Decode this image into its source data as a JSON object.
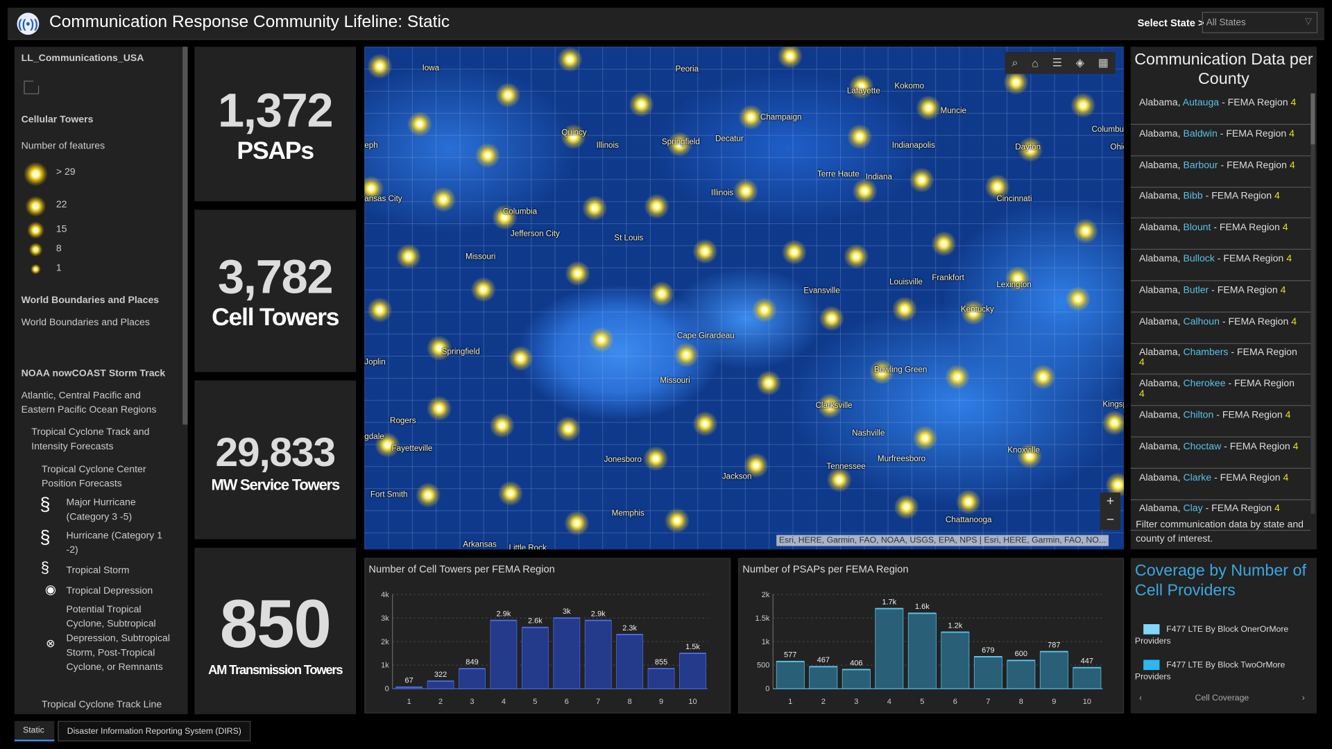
{
  "header": {
    "title": "Communication Response Community Lifeline: Static",
    "select_label": "Select State >",
    "select_value": "All States"
  },
  "legend": {
    "layer": "LL_Communications_USA",
    "cell_title": "Cellular Towers",
    "cell_sub": "Number of features",
    "cell_classes": [
      "> 29",
      "22",
      "15",
      "8",
      "1"
    ],
    "wb_title": "World Boundaries and Places",
    "wb_item": "World Boundaries and Places",
    "noaa_title": "NOAA nowCOAST Storm Track",
    "regions": "Atlantic, Central Pacific and Eastern Pacific Ocean Regions",
    "track": "Tropical Cyclone Track and Intensity Forecasts",
    "center": "Tropical Cyclone Center Position Forecasts",
    "storms": [
      "Major Hurricane (Category 3 -5)",
      "Hurricane (Category 1 -2)",
      "Tropical Storm",
      "Tropical Depression",
      "Potential Tropical Cyclone, Subtropical Depression, Subtropical Storm, Post-Tropical Cyclone, or Remnants"
    ],
    "trackline": "Tropical Cyclone Track Line"
  },
  "stats": [
    {
      "value": "1,372",
      "label": "PSAPs"
    },
    {
      "value": "3,782",
      "label": "Cell Towers"
    },
    {
      "value": "29,833",
      "label": "MW Service Towers"
    },
    {
      "value": "850",
      "label": "AM Transmission Towers"
    }
  ],
  "map": {
    "cities": [
      "Iowa",
      "Peoria",
      "Lafayette",
      "Kokomo",
      "Muncie",
      "Champaign",
      "Quincy",
      "Illinois",
      "Springfield",
      "Decatur",
      "Indianapolis",
      "Dayton",
      "Columbus",
      "Ohio",
      "eph",
      "Terre Haute",
      "Indiana",
      "Illinois",
      "Cincinnati",
      "ansas City",
      "Columbia",
      "Jefferson City",
      "St Louis",
      "Missouri",
      "Frankfort",
      "Louisville",
      "Lexington",
      "Evansville",
      "Kentucky",
      "Cape Girardeau",
      "Springfield",
      "Joplin",
      "Missouri",
      "Bowling Green",
      "Clarksville",
      "Kingsp",
      "Rogers",
      "Nashville",
      "gdale",
      "Fayetteville",
      "Knoxville",
      "Jonesboro",
      "Murfreesboro",
      "Tennessee",
      "Jackson",
      "Fort Smith",
      "Memphis",
      "Chattanooga",
      "Arkansas",
      "Little Rock"
    ],
    "attribution": "Esri, HERE, Garmin, FAO, NOAA, USGS, EPA, NPS | Esri, HERE, Garmin, FAO, NO...",
    "tools": [
      "search-icon",
      "home-icon",
      "legend-icon",
      "layers-icon",
      "basemap-icon"
    ],
    "zoom_in": "+",
    "zoom_out": "−"
  },
  "county": {
    "title": "Communication Data per County",
    "rows": [
      {
        "state": "Alabama,",
        "county": "Autauga",
        "region": "- FEMA Region",
        "num": "4"
      },
      {
        "state": "Alabama,",
        "county": "Baldwin",
        "region": "- FEMA Region",
        "num": "4"
      },
      {
        "state": "Alabama,",
        "county": "Barbour",
        "region": "- FEMA Region",
        "num": "4"
      },
      {
        "state": "Alabama,",
        "county": "Bibb",
        "region": "- FEMA Region",
        "num": "4"
      },
      {
        "state": "Alabama,",
        "county": "Blount",
        "region": "- FEMA Region",
        "num": "4"
      },
      {
        "state": "Alabama,",
        "county": "Bullock",
        "region": "- FEMA Region",
        "num": "4"
      },
      {
        "state": "Alabama,",
        "county": "Butler",
        "region": "- FEMA Region",
        "num": "4"
      },
      {
        "state": "Alabama,",
        "county": "Calhoun",
        "region": "- FEMA Region",
        "num": "4"
      },
      {
        "state": "Alabama,",
        "county": "Chambers",
        "region": "- FEMA Region",
        "num": "4"
      },
      {
        "state": "Alabama,",
        "county": "Cherokee",
        "region": "- FEMA Region",
        "num": "4"
      },
      {
        "state": "Alabama,",
        "county": "Chilton",
        "region": "- FEMA Region",
        "num": "4"
      },
      {
        "state": "Alabama,",
        "county": "Choctaw",
        "region": "- FEMA Region",
        "num": "4"
      },
      {
        "state": "Alabama,",
        "county": "Clarke",
        "region": "- FEMA Region",
        "num": "4"
      },
      {
        "state": "Alabama,",
        "county": "Clay",
        "region": "- FEMA Region",
        "num": "4"
      }
    ],
    "note": "Filter communication data by state and county of interest."
  },
  "coverage": {
    "title": "Coverage by Number of Cell Providers",
    "items": [
      {
        "label": "F477 LTE By Block OnerOrMore Providers",
        "color": "#7fd8f8"
      },
      {
        "label": "F477 LTE By Block TwoOrMore Providers",
        "color": "#2bb8f0"
      }
    ],
    "nav_label": "Cell Coverage"
  },
  "tabs": [
    "Static",
    "Disaster Information Reporting System (DIRS)"
  ],
  "chart_data": [
    {
      "type": "bar",
      "title": "Number of Cell Towers per FEMA Region",
      "categories": [
        "1",
        "2",
        "3",
        "4",
        "5",
        "6",
        "7",
        "8",
        "9",
        "10"
      ],
      "values": [
        67,
        322,
        849,
        2900,
        2600,
        3000,
        2900,
        2300,
        855,
        1500
      ],
      "labels": [
        "67",
        "322",
        "849",
        "2.9k",
        "2.6k",
        "3k",
        "2.9k",
        "2.3k",
        "855",
        "1.5k"
      ],
      "ylim": [
        0,
        4000
      ],
      "yticks": [
        "0",
        "1k",
        "2k",
        "3k",
        "4k"
      ],
      "grid": true,
      "color": "#243a8a"
    },
    {
      "type": "bar",
      "title": "Number of PSAPs per FEMA Region",
      "categories": [
        "1",
        "2",
        "3",
        "4",
        "5",
        "6",
        "7",
        "8",
        "9",
        "10"
      ],
      "values": [
        577,
        467,
        406,
        1700,
        1600,
        1200,
        679,
        600,
        787,
        447
      ],
      "labels": [
        "577",
        "467",
        "406",
        "1.7k",
        "1.6k",
        "1.2k",
        "679",
        "600",
        "787",
        "447"
      ],
      "ylim": [
        0,
        2000
      ],
      "yticks": [
        "0",
        "500",
        "1k",
        "1.5k",
        "2k"
      ],
      "grid": true,
      "color": "#2a5f78"
    }
  ]
}
